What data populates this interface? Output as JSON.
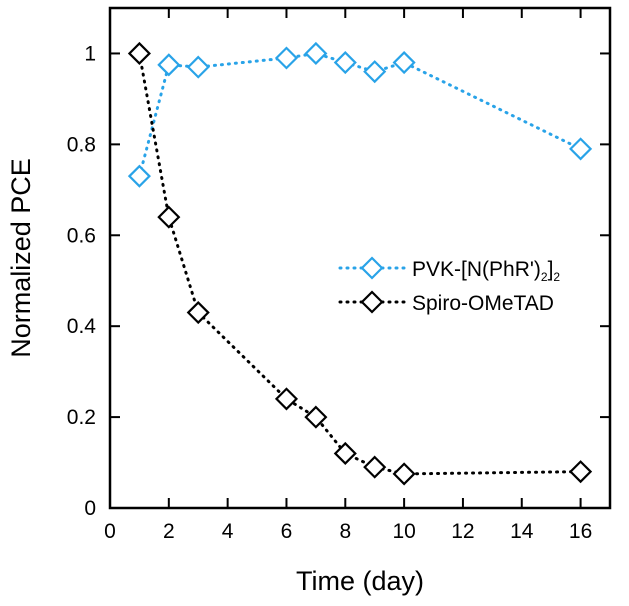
{
  "chart_data": {
    "type": "line",
    "xlabel": "Time (day)",
    "ylabel": "Normalized PCE",
    "xlim": [
      0,
      17
    ],
    "ylim": [
      0,
      1.1
    ],
    "xticks": [
      "0",
      "2",
      "4",
      "6",
      "8",
      "10",
      "12",
      "14",
      "16"
    ],
    "yticks": [
      "0",
      "0.2",
      "0.4",
      "0.6",
      "0.8",
      "1"
    ],
    "grid": false,
    "legend_position": "right-middle",
    "series": [
      {
        "name": "PVK-[N(PhR')2]2",
        "legend_parts": {
          "base": "PVK-[N(PhR')",
          "sub1": "2",
          "mid": "]",
          "sub2": "2"
        },
        "color": "#29a3e8",
        "line_style": "dotted",
        "marker": "diamond-open",
        "points": [
          {
            "x": 1,
            "y": 0.73
          },
          {
            "x": 2,
            "y": 0.975
          },
          {
            "x": 3,
            "y": 0.97
          },
          {
            "x": 6,
            "y": 0.99
          },
          {
            "x": 7,
            "y": 1.0
          },
          {
            "x": 8,
            "y": 0.98
          },
          {
            "x": 9,
            "y": 0.96
          },
          {
            "x": 10,
            "y": 0.98
          },
          {
            "x": 16,
            "y": 0.79
          }
        ]
      },
      {
        "name": "Spiro-OMeTAD",
        "color": "#000000",
        "line_style": "dotted",
        "marker": "diamond-open",
        "points": [
          {
            "x": 1,
            "y": 1.0
          },
          {
            "x": 2,
            "y": 0.64
          },
          {
            "x": 3,
            "y": 0.43
          },
          {
            "x": 6,
            "y": 0.24
          },
          {
            "x": 7,
            "y": 0.2
          },
          {
            "x": 8,
            "y": 0.12
          },
          {
            "x": 9,
            "y": 0.09
          },
          {
            "x": 10,
            "y": 0.075
          },
          {
            "x": 16,
            "y": 0.08
          }
        ]
      }
    ]
  }
}
